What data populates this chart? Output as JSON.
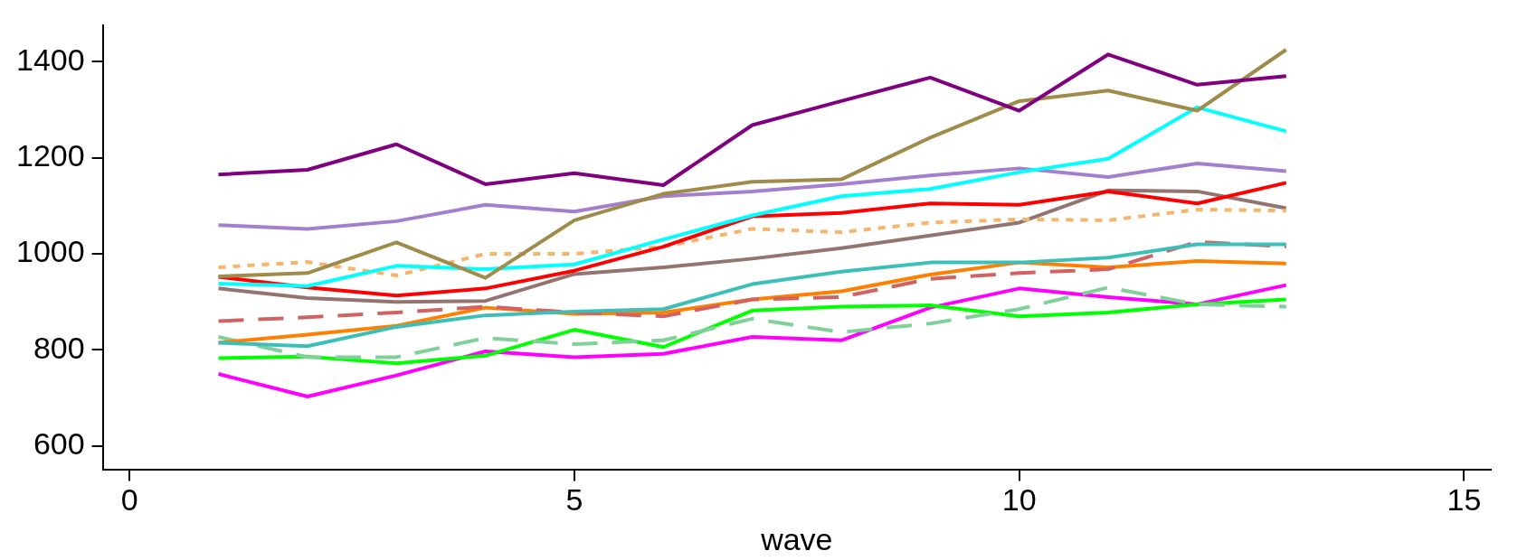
{
  "chart_data": {
    "type": "line",
    "xlabel": "wave",
    "x": [
      1,
      2,
      3,
      4,
      5,
      6,
      7,
      8,
      9,
      10,
      11,
      12,
      13
    ],
    "xlim": [
      -0.3,
      15.3
    ],
    "xticks": [
      0,
      5,
      10,
      15
    ],
    "ylim": [
      550,
      1475
    ],
    "yticks": [
      600,
      800,
      1000,
      1200,
      1400
    ],
    "grid": false,
    "legend": false,
    "marker": "none",
    "series": [
      {
        "color": "#800080",
        "values": [
          1165,
          1175,
          1228,
          1145,
          1168,
          1143,
          1268,
          1318,
          1367,
          1298,
          1415,
          1352,
          1370
        ]
      },
      {
        "color": "#a08c4a",
        "values": [
          953,
          960,
          1024,
          950,
          1070,
          1125,
          1150,
          1155,
          1242,
          1318,
          1340,
          1298,
          1425
        ]
      },
      {
        "color": "#00ffff",
        "values": [
          938,
          933,
          975,
          968,
          978,
          1030,
          1080,
          1120,
          1135,
          1170,
          1198,
          1305,
          1255
        ]
      },
      {
        "color": "#a57fcf",
        "values": [
          1060,
          1052,
          1068,
          1102,
          1088,
          1120,
          1130,
          1145,
          1163,
          1178,
          1160,
          1188,
          1172
        ]
      },
      {
        "color": "#ff0000",
        "values": [
          952,
          930,
          913,
          928,
          965,
          1015,
          1078,
          1085,
          1105,
          1102,
          1130,
          1105,
          1148
        ]
      },
      {
        "color": "#f9b46b",
        "line_style": "dotted",
        "values": [
          972,
          983,
          955,
          1000,
          1000,
          1015,
          1052,
          1045,
          1065,
          1072,
          1070,
          1092,
          1090
        ]
      },
      {
        "color": "#937470",
        "values": [
          928,
          908,
          900,
          902,
          958,
          972,
          990,
          1012,
          1038,
          1065,
          1132,
          1130,
          1095
        ]
      },
      {
        "color": "#3cbfb9",
        "values": [
          815,
          808,
          848,
          872,
          880,
          885,
          937,
          963,
          982,
          982,
          992,
          1020,
          1020
        ]
      },
      {
        "color": "#d26262",
        "line_style": "dashed",
        "values": [
          860,
          868,
          878,
          890,
          878,
          870,
          905,
          910,
          948,
          960,
          968,
          1025,
          1015
        ]
      },
      {
        "color": "#ff8000",
        "values": [
          815,
          832,
          850,
          888,
          875,
          878,
          905,
          922,
          957,
          982,
          972,
          985,
          980
        ]
      },
      {
        "color": "#80d09a",
        "line_style": "dashed",
        "values": [
          827,
          785,
          785,
          825,
          812,
          820,
          865,
          837,
          855,
          885,
          930,
          895,
          890
        ]
      },
      {
        "color": "#00ff00",
        "values": [
          783,
          786,
          772,
          788,
          842,
          806,
          882,
          890,
          893,
          870,
          878,
          895,
          905
        ]
      },
      {
        "color": "#ff00ff",
        "values": [
          750,
          703,
          747,
          797,
          785,
          792,
          827,
          820,
          888,
          928,
          910,
          895,
          935
        ]
      }
    ]
  }
}
